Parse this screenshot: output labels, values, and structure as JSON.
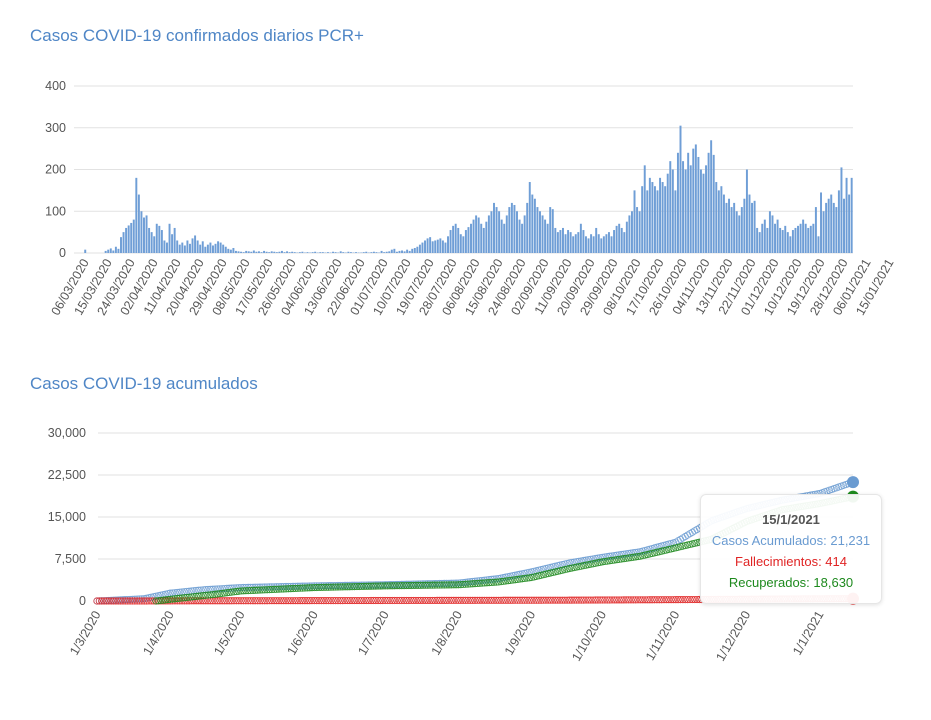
{
  "chart_data": [
    {
      "type": "bar",
      "title": "Casos COVID-19 confirmados diarios PCR+",
      "xlabel": "",
      "ylabel": "",
      "ylim": [
        0,
        400
      ],
      "yticks": [
        0,
        100,
        200,
        300,
        400
      ],
      "color": "#6f9ed6",
      "start_date": "2020-03-06",
      "tick_labels": [
        "06/03/2020",
        "15/03/2020",
        "24/03/2020",
        "02/04/2020",
        "11/04/2020",
        "20/04/2020",
        "29/04/2020",
        "08/05/2020",
        "17/05/2020",
        "26/05/2020",
        "04/06/2020",
        "13/06/2020",
        "22/06/2020",
        "01/07/2020",
        "10/07/2020",
        "19/07/2020",
        "28/07/2020",
        "06/08/2020",
        "15/08/2020",
        "24/08/2020",
        "02/09/2020",
        "11/09/2020",
        "20/09/2020",
        "29/09/2020",
        "08/10/2020",
        "17/10/2020",
        "26/10/2020",
        "04/11/2020",
        "13/11/2020",
        "22/11/2020",
        "01/12/2020",
        "10/12/2020",
        "19/12/2020",
        "28/12/2020",
        "06/01/2021",
        "15/01/2021"
      ],
      "values": [
        8,
        0,
        0,
        0,
        0,
        0,
        0,
        0,
        5,
        8,
        11,
        6,
        15,
        10,
        38,
        50,
        60,
        66,
        72,
        80,
        180,
        140,
        100,
        85,
        90,
        60,
        50,
        40,
        70,
        65,
        55,
        30,
        25,
        70,
        45,
        60,
        30,
        20,
        25,
        18,
        30,
        22,
        35,
        42,
        30,
        20,
        28,
        15,
        20,
        25,
        18,
        22,
        28,
        25,
        20,
        15,
        10,
        8,
        12,
        5,
        4,
        3,
        2,
        5,
        4,
        3,
        6,
        3,
        4,
        2,
        5,
        3,
        2,
        4,
        3,
        2,
        3,
        5,
        2,
        4,
        2,
        3,
        2,
        1,
        2,
        3,
        1,
        2,
        1,
        2,
        3,
        1,
        2,
        2,
        1,
        2,
        1,
        3,
        2,
        1,
        4,
        2,
        1,
        3,
        2,
        1,
        2,
        1,
        1,
        2,
        3,
        1,
        2,
        3,
        2,
        1,
        5,
        2,
        3,
        4,
        8,
        10,
        3,
        5,
        6,
        4,
        8,
        5,
        10,
        12,
        15,
        20,
        25,
        30,
        35,
        38,
        28,
        30,
        32,
        35,
        30,
        25,
        40,
        55,
        65,
        70,
        60,
        45,
        40,
        55,
        62,
        70,
        80,
        90,
        85,
        70,
        60,
        75,
        90,
        100,
        120,
        110,
        100,
        80,
        70,
        90,
        110,
        120,
        115,
        100,
        80,
        70,
        90,
        120,
        170,
        140,
        130,
        110,
        100,
        90,
        80,
        70,
        110,
        105,
        60,
        50,
        55,
        60,
        45,
        55,
        50,
        40,
        45,
        50,
        70,
        55,
        40,
        35,
        45,
        40,
        60,
        45,
        35,
        40,
        45,
        50,
        40,
        55,
        65,
        70,
        60,
        50,
        75,
        90,
        100,
        150,
        110,
        100,
        160,
        210,
        150,
        180,
        170,
        160,
        150,
        180,
        170,
        160,
        190,
        220,
        200,
        150,
        240,
        305,
        220,
        200,
        240,
        210,
        250,
        260,
        230,
        200,
        190,
        210,
        240,
        270,
        235,
        170,
        150,
        160,
        140,
        120,
        130,
        110,
        120,
        100,
        90,
        110,
        130,
        200,
        140,
        120,
        125,
        60,
        50,
        70,
        80,
        60,
        100,
        90,
        70,
        80,
        60,
        55,
        65,
        50,
        40,
        55,
        60,
        65,
        70,
        80,
        70,
        60,
        65,
        70,
        110,
        40,
        145,
        100,
        120,
        130,
        140,
        120,
        110,
        150,
        205,
        130,
        180,
        140,
        180
      ]
    },
    {
      "type": "scatter",
      "title": "Casos COVID-19 acumulados",
      "ylim": [
        0,
        30000
      ],
      "yticks": [
        0,
        7500,
        15000,
        22500,
        30000
      ],
      "ytick_labels": [
        "0",
        "7,500",
        "15,000",
        "22,500",
        "30,000"
      ],
      "start_date": "2020-03-01",
      "end_date": "2021-01-15",
      "tick_labels": [
        "1/3/2020",
        "1/4/2020",
        "1/5/2020",
        "1/6/2020",
        "1/7/2020",
        "1/8/2020",
        "1/9/2020",
        "1/10/2020",
        "1/11/2020",
        "1/12/2020",
        "1/1/2021"
      ],
      "tick_days": [
        0,
        31,
        61,
        92,
        122,
        153,
        184,
        214,
        245,
        275,
        306
      ],
      "series": [
        {
          "name": "Casos Acumulados",
          "color": "#6a9bd1",
          "anchors_day": [
            0,
            20,
            31,
            45,
            61,
            92,
            122,
            153,
            170,
            184,
            200,
            214,
            230,
            245,
            260,
            275,
            290,
            306,
            320
          ],
          "anchors_value": [
            0,
            400,
            1400,
            2000,
            2400,
            2700,
            2900,
            3200,
            4000,
            5200,
            6800,
            7800,
            8800,
            10500,
            14300,
            16500,
            18000,
            19200,
            21231
          ]
        },
        {
          "name": "Fallecimientos",
          "color": "#e02424",
          "anchors_day": [
            0,
            20,
            40,
            100,
            200,
            250,
            300,
            320
          ],
          "anchors_value": [
            0,
            5,
            30,
            70,
            150,
            250,
            380,
            414
          ]
        },
        {
          "name": "Recuperados",
          "color": "#1e8a1e",
          "anchors_day": [
            25,
            31,
            50,
            61,
            92,
            122,
            153,
            170,
            184,
            200,
            214,
            230,
            245,
            260,
            275,
            290,
            306,
            320
          ],
          "anchors_value": [
            0,
            300,
            1200,
            1800,
            2400,
            2700,
            2900,
            3400,
            4200,
            5800,
            7000,
            8000,
            9500,
            11000,
            14200,
            16300,
            17400,
            18630
          ]
        }
      ]
    }
  ],
  "tooltip": {
    "date": "15/1/2021",
    "casos": "Casos Acumulados: 21,231",
    "fallecimientos": "Fallecimientos: 414",
    "recuperados": "Recuperados: 18,630"
  }
}
